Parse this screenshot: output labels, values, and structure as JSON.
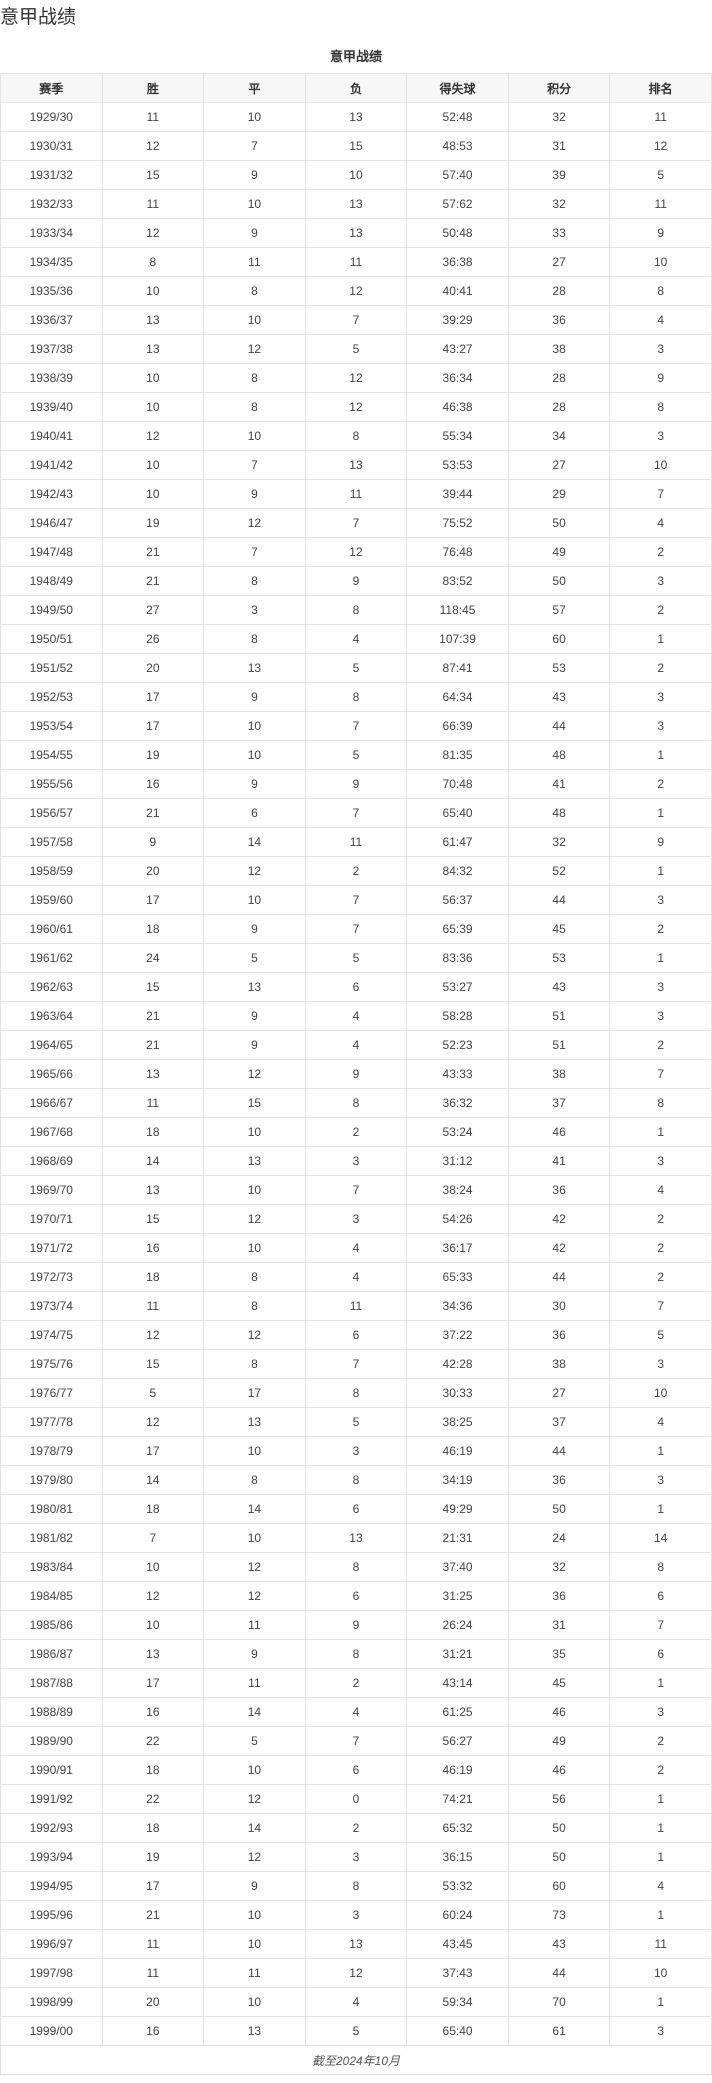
{
  "page_title": "意甲战绩",
  "table": {
    "caption": "意甲战绩",
    "headers": [
      "赛季",
      "胜",
      "平",
      "负",
      "得失球",
      "积分",
      "排名"
    ],
    "rows": [
      [
        "1929/30",
        "11",
        "10",
        "13",
        "52:48",
        "32",
        "11"
      ],
      [
        "1930/31",
        "12",
        "7",
        "15",
        "48:53",
        "31",
        "12"
      ],
      [
        "1931/32",
        "15",
        "9",
        "10",
        "57:40",
        "39",
        "5"
      ],
      [
        "1932/33",
        "11",
        "10",
        "13",
        "57:62",
        "32",
        "11"
      ],
      [
        "1933/34",
        "12",
        "9",
        "13",
        "50:48",
        "33",
        "9"
      ],
      [
        "1934/35",
        "8",
        "11",
        "11",
        "36:38",
        "27",
        "10"
      ],
      [
        "1935/36",
        "10",
        "8",
        "12",
        "40:41",
        "28",
        "8"
      ],
      [
        "1936/37",
        "13",
        "10",
        "7",
        "39:29",
        "36",
        "4"
      ],
      [
        "1937/38",
        "13",
        "12",
        "5",
        "43:27",
        "38",
        "3"
      ],
      [
        "1938/39",
        "10",
        "8",
        "12",
        "36:34",
        "28",
        "9"
      ],
      [
        "1939/40",
        "10",
        "8",
        "12",
        "46:38",
        "28",
        "8"
      ],
      [
        "1940/41",
        "12",
        "10",
        "8",
        "55:34",
        "34",
        "3"
      ],
      [
        "1941/42",
        "10",
        "7",
        "13",
        "53:53",
        "27",
        "10"
      ],
      [
        "1942/43",
        "10",
        "9",
        "11",
        "39:44",
        "29",
        "7"
      ],
      [
        "1946/47",
        "19",
        "12",
        "7",
        "75:52",
        "50",
        "4"
      ],
      [
        "1947/48",
        "21",
        "7",
        "12",
        "76:48",
        "49",
        "2"
      ],
      [
        "1948/49",
        "21",
        "8",
        "9",
        "83:52",
        "50",
        "3"
      ],
      [
        "1949/50",
        "27",
        "3",
        "8",
        "118:45",
        "57",
        "2"
      ],
      [
        "1950/51",
        "26",
        "8",
        "4",
        "107:39",
        "60",
        "1"
      ],
      [
        "1951/52",
        "20",
        "13",
        "5",
        "87:41",
        "53",
        "2"
      ],
      [
        "1952/53",
        "17",
        "9",
        "8",
        "64:34",
        "43",
        "3"
      ],
      [
        "1953/54",
        "17",
        "10",
        "7",
        "66:39",
        "44",
        "3"
      ],
      [
        "1954/55",
        "19",
        "10",
        "5",
        "81:35",
        "48",
        "1"
      ],
      [
        "1955/56",
        "16",
        "9",
        "9",
        "70:48",
        "41",
        "2"
      ],
      [
        "1956/57",
        "21",
        "6",
        "7",
        "65:40",
        "48",
        "1"
      ],
      [
        "1957/58",
        "9",
        "14",
        "11",
        "61:47",
        "32",
        "9"
      ],
      [
        "1958/59",
        "20",
        "12",
        "2",
        "84:32",
        "52",
        "1"
      ],
      [
        "1959/60",
        "17",
        "10",
        "7",
        "56:37",
        "44",
        "3"
      ],
      [
        "1960/61",
        "18",
        "9",
        "7",
        "65:39",
        "45",
        "2"
      ],
      [
        "1961/62",
        "24",
        "5",
        "5",
        "83:36",
        "53",
        "1"
      ],
      [
        "1962/63",
        "15",
        "13",
        "6",
        "53:27",
        "43",
        "3"
      ],
      [
        "1963/64",
        "21",
        "9",
        "4",
        "58:28",
        "51",
        "3"
      ],
      [
        "1964/65",
        "21",
        "9",
        "4",
        "52:23",
        "51",
        "2"
      ],
      [
        "1965/66",
        "13",
        "12",
        "9",
        "43:33",
        "38",
        "7"
      ],
      [
        "1966/67",
        "11",
        "15",
        "8",
        "36:32",
        "37",
        "8"
      ],
      [
        "1967/68",
        "18",
        "10",
        "2",
        "53:24",
        "46",
        "1"
      ],
      [
        "1968/69",
        "14",
        "13",
        "3",
        "31:12",
        "41",
        "3"
      ],
      [
        "1969/70",
        "13",
        "10",
        "7",
        "38:24",
        "36",
        "4"
      ],
      [
        "1970/71",
        "15",
        "12",
        "3",
        "54:26",
        "42",
        "2"
      ],
      [
        "1971/72",
        "16",
        "10",
        "4",
        "36:17",
        "42",
        "2"
      ],
      [
        "1972/73",
        "18",
        "8",
        "4",
        "65:33",
        "44",
        "2"
      ],
      [
        "1973/74",
        "11",
        "8",
        "11",
        "34:36",
        "30",
        "7"
      ],
      [
        "1974/75",
        "12",
        "12",
        "6",
        "37:22",
        "36",
        "5"
      ],
      [
        "1975/76",
        "15",
        "8",
        "7",
        "42:28",
        "38",
        "3"
      ],
      [
        "1976/77",
        "5",
        "17",
        "8",
        "30:33",
        "27",
        "10"
      ],
      [
        "1977/78",
        "12",
        "13",
        "5",
        "38:25",
        "37",
        "4"
      ],
      [
        "1978/79",
        "17",
        "10",
        "3",
        "46:19",
        "44",
        "1"
      ],
      [
        "1979/80",
        "14",
        "8",
        "8",
        "34:19",
        "36",
        "3"
      ],
      [
        "1980/81",
        "18",
        "14",
        "6",
        "49:29",
        "50",
        "1"
      ],
      [
        "1981/82",
        "7",
        "10",
        "13",
        "21:31",
        "24",
        "14"
      ],
      [
        "1983/84",
        "10",
        "12",
        "8",
        "37:40",
        "32",
        "8"
      ],
      [
        "1984/85",
        "12",
        "12",
        "6",
        "31:25",
        "36",
        "6"
      ],
      [
        "1985/86",
        "10",
        "11",
        "9",
        "26:24",
        "31",
        "7"
      ],
      [
        "1986/87",
        "13",
        "9",
        "8",
        "31:21",
        "35",
        "6"
      ],
      [
        "1987/88",
        "17",
        "11",
        "2",
        "43:14",
        "45",
        "1"
      ],
      [
        "1988/89",
        "16",
        "14",
        "4",
        "61:25",
        "46",
        "3"
      ],
      [
        "1989/90",
        "22",
        "5",
        "7",
        "56:27",
        "49",
        "2"
      ],
      [
        "1990/91",
        "18",
        "10",
        "6",
        "46:19",
        "46",
        "2"
      ],
      [
        "1991/92",
        "22",
        "12",
        "0",
        "74:21",
        "56",
        "1"
      ],
      [
        "1992/93",
        "18",
        "14",
        "2",
        "65:32",
        "50",
        "1"
      ],
      [
        "1993/94",
        "19",
        "12",
        "3",
        "36:15",
        "50",
        "1"
      ],
      [
        "1994/95",
        "17",
        "9",
        "8",
        "53:32",
        "60",
        "4"
      ],
      [
        "1995/96",
        "21",
        "10",
        "3",
        "60:24",
        "73",
        "1"
      ],
      [
        "1996/97",
        "11",
        "10",
        "13",
        "43:45",
        "43",
        "11"
      ],
      [
        "1997/98",
        "11",
        "11",
        "12",
        "37:43",
        "44",
        "10"
      ],
      [
        "1998/99",
        "20",
        "10",
        "4",
        "59:34",
        "70",
        "1"
      ],
      [
        "1999/00",
        "16",
        "13",
        "5",
        "65:40",
        "61",
        "3"
      ]
    ],
    "footer": "截至2024年10月"
  }
}
